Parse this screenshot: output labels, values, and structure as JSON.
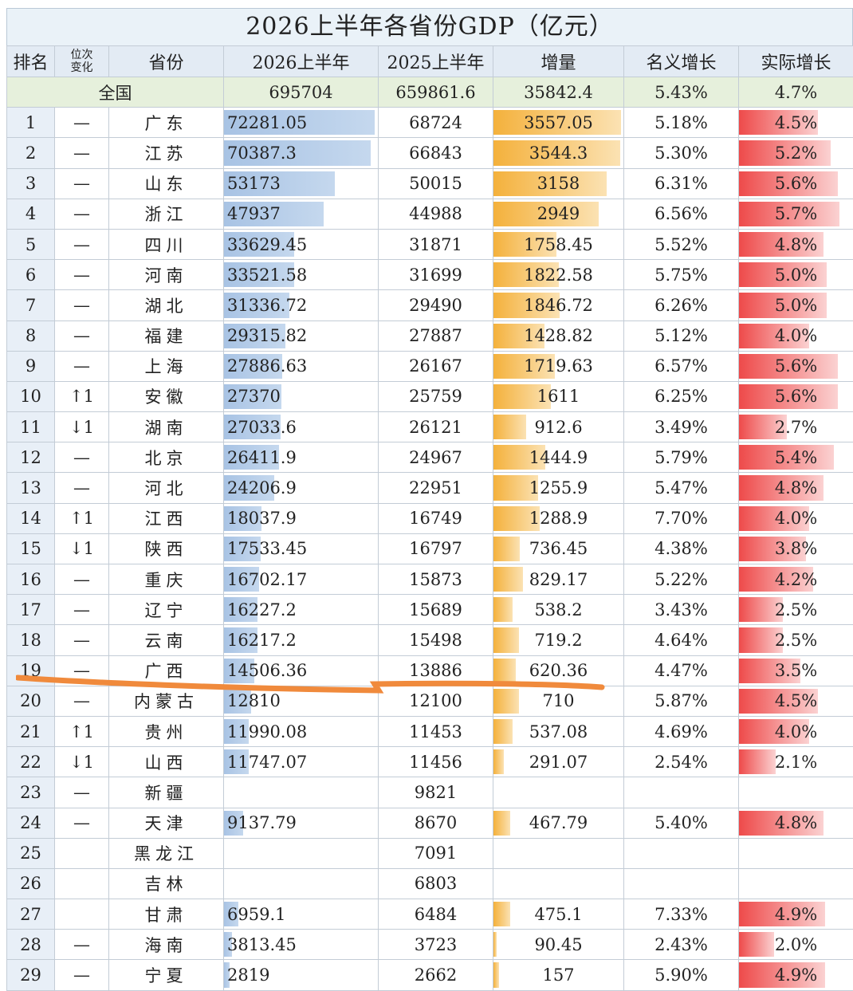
{
  "title": "2026上半年各省份GDP（亿元）",
  "headers": {
    "rank": "排名",
    "change": [
      "位次",
      "变化"
    ],
    "province": "省份",
    "gdp2026": "2026上半年",
    "gdp2025": "2025上半年",
    "increment": "增量",
    "nominal": "名义增长",
    "real": "实际增长"
  },
  "total": {
    "label": "全国",
    "gdp2026": "695704",
    "gdp2025": "659861.6",
    "increment": "35842.4",
    "nominal": "5.43%",
    "real": "4.7%"
  },
  "rows": [
    {
      "rank": "1",
      "change": "—",
      "province": "广东",
      "gdp2026": "72281.05",
      "gdp2025": "68724",
      "increment": "3557.05",
      "nominal": "5.18%",
      "real": "4.5%"
    },
    {
      "rank": "2",
      "change": "—",
      "province": "江苏",
      "gdp2026": "70387.3",
      "gdp2025": "66843",
      "increment": "3544.3",
      "nominal": "5.30%",
      "real": "5.2%"
    },
    {
      "rank": "3",
      "change": "—",
      "province": "山东",
      "gdp2026": "53173",
      "gdp2025": "50015",
      "increment": "3158",
      "nominal": "6.31%",
      "real": "5.6%"
    },
    {
      "rank": "4",
      "change": "—",
      "province": "浙江",
      "gdp2026": "47937",
      "gdp2025": "44988",
      "increment": "2949",
      "nominal": "6.56%",
      "real": "5.7%"
    },
    {
      "rank": "5",
      "change": "—",
      "province": "四川",
      "gdp2026": "33629.45",
      "gdp2025": "31871",
      "increment": "1758.45",
      "nominal": "5.52%",
      "real": "4.8%"
    },
    {
      "rank": "6",
      "change": "—",
      "province": "河南",
      "gdp2026": "33521.58",
      "gdp2025": "31699",
      "increment": "1822.58",
      "nominal": "5.75%",
      "real": "5.0%"
    },
    {
      "rank": "7",
      "change": "—",
      "province": "湖北",
      "gdp2026": "31336.72",
      "gdp2025": "29490",
      "increment": "1846.72",
      "nominal": "6.26%",
      "real": "5.0%"
    },
    {
      "rank": "8",
      "change": "—",
      "province": "福建",
      "gdp2026": "29315.82",
      "gdp2025": "27887",
      "increment": "1428.82",
      "nominal": "5.12%",
      "real": "4.0%"
    },
    {
      "rank": "9",
      "change": "—",
      "province": "上海",
      "gdp2026": "27886.63",
      "gdp2025": "26167",
      "increment": "1719.63",
      "nominal": "6.57%",
      "real": "5.6%"
    },
    {
      "rank": "10",
      "change": "↑1",
      "province": "安徽",
      "gdp2026": "27370",
      "gdp2025": "25759",
      "increment": "1611",
      "nominal": "6.25%",
      "real": "5.6%"
    },
    {
      "rank": "11",
      "change": "↓1",
      "province": "湖南",
      "gdp2026": "27033.6",
      "gdp2025": "26121",
      "increment": "912.6",
      "nominal": "3.49%",
      "real": "2.7%"
    },
    {
      "rank": "12",
      "change": "—",
      "province": "北京",
      "gdp2026": "26411.9",
      "gdp2025": "24967",
      "increment": "1444.9",
      "nominal": "5.79%",
      "real": "5.4%"
    },
    {
      "rank": "13",
      "change": "—",
      "province": "河北",
      "gdp2026": "24206.9",
      "gdp2025": "22951",
      "increment": "1255.9",
      "nominal": "5.47%",
      "real": "4.8%"
    },
    {
      "rank": "14",
      "change": "↑1",
      "province": "江西",
      "gdp2026": "18037.9",
      "gdp2025": "16749",
      "increment": "1288.9",
      "nominal": "7.70%",
      "real": "4.0%"
    },
    {
      "rank": "15",
      "change": "↓1",
      "province": "陕西",
      "gdp2026": "17533.45",
      "gdp2025": "16797",
      "increment": "736.45",
      "nominal": "4.38%",
      "real": "3.8%"
    },
    {
      "rank": "16",
      "change": "—",
      "province": "重庆",
      "gdp2026": "16702.17",
      "gdp2025": "15873",
      "increment": "829.17",
      "nominal": "5.22%",
      "real": "4.2%"
    },
    {
      "rank": "17",
      "change": "—",
      "province": "辽宁",
      "gdp2026": "16227.2",
      "gdp2025": "15689",
      "increment": "538.2",
      "nominal": "3.43%",
      "real": "2.5%"
    },
    {
      "rank": "18",
      "change": "—",
      "province": "云南",
      "gdp2026": "16217.2",
      "gdp2025": "15498",
      "increment": "719.2",
      "nominal": "4.64%",
      "real": "2.5%"
    },
    {
      "rank": "19",
      "change": "—",
      "province": "广西",
      "gdp2026": "14506.36",
      "gdp2025": "13886",
      "increment": "620.36",
      "nominal": "4.47%",
      "real": "3.5%"
    },
    {
      "rank": "20",
      "change": "—",
      "province": "内蒙古",
      "gdp2026": "12810",
      "gdp2025": "12100",
      "increment": "710",
      "nominal": "5.87%",
      "real": "4.5%"
    },
    {
      "rank": "21",
      "change": "↑1",
      "province": "贵州",
      "gdp2026": "11990.08",
      "gdp2025": "11453",
      "increment": "537.08",
      "nominal": "4.69%",
      "real": "4.0%"
    },
    {
      "rank": "22",
      "change": "↓1",
      "province": "山西",
      "gdp2026": "11747.07",
      "gdp2025": "11456",
      "increment": "291.07",
      "nominal": "2.54%",
      "real": "2.1%"
    },
    {
      "rank": "23",
      "change": "—",
      "province": "新疆",
      "gdp2026": "",
      "gdp2025": "9821",
      "increment": "",
      "nominal": "",
      "real": ""
    },
    {
      "rank": "24",
      "change": "—",
      "province": "天津",
      "gdp2026": "9137.79",
      "gdp2025": "8670",
      "increment": "467.79",
      "nominal": "5.40%",
      "real": "4.8%"
    },
    {
      "rank": "25",
      "change": "",
      "province": "黑龙江",
      "gdp2026": "",
      "gdp2025": "7091",
      "increment": "",
      "nominal": "",
      "real": ""
    },
    {
      "rank": "26",
      "change": "",
      "province": "吉林",
      "gdp2026": "",
      "gdp2025": "6803",
      "increment": "",
      "nominal": "",
      "real": ""
    },
    {
      "rank": "27",
      "change": "",
      "province": "甘肃",
      "gdp2026": "6959.1",
      "gdp2025": "6484",
      "increment": "475.1",
      "nominal": "7.33%",
      "real": "4.9%"
    },
    {
      "rank": "28",
      "change": "—",
      "province": "海南",
      "gdp2026": "3813.45",
      "gdp2025": "3723",
      "increment": "90.45",
      "nominal": "2.43%",
      "real": "2.0%"
    },
    {
      "rank": "29",
      "change": "—",
      "province": "宁夏",
      "gdp2026": "2819",
      "gdp2025": "2662",
      "increment": "157",
      "nominal": "5.90%",
      "real": "4.9%"
    }
  ],
  "colors": {
    "gdp_bar": "#a8c3e4",
    "increment_bar": "#f4b13c",
    "real_bar": "#ee4a4a",
    "handwritten_mark": "#f08a3c"
  }
}
